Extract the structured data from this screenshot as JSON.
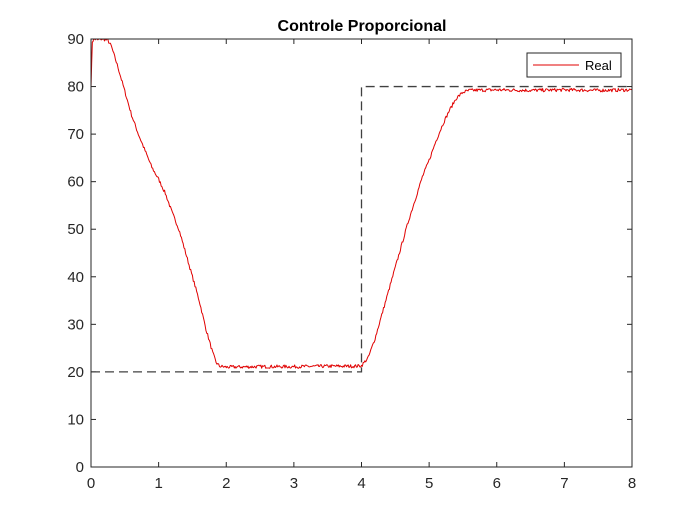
{
  "chart_data": {
    "type": "line",
    "title": "Controle Proporcional",
    "xlabel": "",
    "ylabel": "",
    "xlim": [
      0,
      8
    ],
    "ylim": [
      0,
      90
    ],
    "xticks": [
      0,
      1,
      2,
      3,
      4,
      5,
      6,
      7,
      8
    ],
    "yticks": [
      0,
      10,
      20,
      30,
      40,
      50,
      60,
      70,
      80,
      90
    ],
    "grid": true,
    "legend": {
      "position": "top-right",
      "entries": [
        "Real"
      ]
    },
    "series": [
      {
        "name": "Real",
        "color": "#e00000",
        "style": "solid",
        "points": [
          [
            0.0,
            80.0
          ],
          [
            0.02,
            89.5
          ],
          [
            0.05,
            90.0
          ],
          [
            0.1,
            89.8
          ],
          [
            0.15,
            90.0
          ],
          [
            0.2,
            89.9
          ],
          [
            0.25,
            89.7
          ],
          [
            0.3,
            88.5
          ],
          [
            0.4,
            84.0
          ],
          [
            0.5,
            79.0
          ],
          [
            0.6,
            74.0
          ],
          [
            0.7,
            70.0
          ],
          [
            0.8,
            66.5
          ],
          [
            0.9,
            63.0
          ],
          [
            1.0,
            60.5
          ],
          [
            1.1,
            57.5
          ],
          [
            1.2,
            53.5
          ],
          [
            1.3,
            50.0
          ],
          [
            1.4,
            45.0
          ],
          [
            1.5,
            40.0
          ],
          [
            1.6,
            35.0
          ],
          [
            1.65,
            32.0
          ],
          [
            1.7,
            29.0
          ],
          [
            1.75,
            26.5
          ],
          [
            1.8,
            24.0
          ],
          [
            1.85,
            22.0
          ],
          [
            1.9,
            21.2
          ],
          [
            2.0,
            21.0
          ],
          [
            2.5,
            21.1
          ],
          [
            3.0,
            21.1
          ],
          [
            3.5,
            21.2
          ],
          [
            3.9,
            21.2
          ],
          [
            4.0,
            21.3
          ],
          [
            4.1,
            23.0
          ],
          [
            4.2,
            27.0
          ],
          [
            4.3,
            32.0
          ],
          [
            4.4,
            37.0
          ],
          [
            4.5,
            42.0
          ],
          [
            4.6,
            47.0
          ],
          [
            4.7,
            52.0
          ],
          [
            4.8,
            56.5
          ],
          [
            4.9,
            61.0
          ],
          [
            5.0,
            64.5
          ],
          [
            5.1,
            68.5
          ],
          [
            5.2,
            72.0
          ],
          [
            5.3,
            75.0
          ],
          [
            5.4,
            77.5
          ],
          [
            5.5,
            78.8
          ],
          [
            5.6,
            79.2
          ],
          [
            6.0,
            79.3
          ],
          [
            6.5,
            79.2
          ],
          [
            7.0,
            79.3
          ],
          [
            7.5,
            79.2
          ],
          [
            8.0,
            79.3
          ]
        ]
      },
      {
        "name": "",
        "color": "#404040",
        "style": "dashed",
        "points": [
          [
            0.0,
            20.0
          ],
          [
            4.0,
            20.0
          ],
          [
            4.0,
            80.0
          ],
          [
            8.0,
            80.0
          ]
        ]
      }
    ]
  }
}
